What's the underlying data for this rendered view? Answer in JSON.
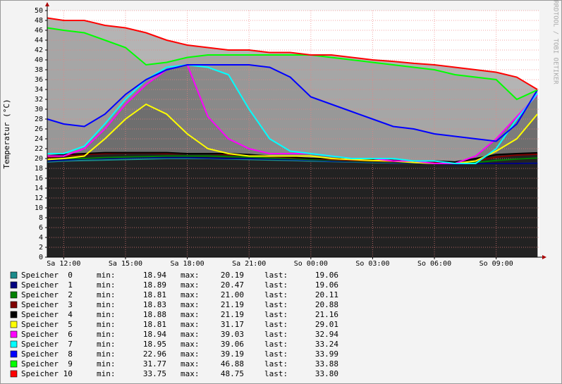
{
  "chart_data": {
    "type": "line",
    "ylabel": "Temperatur (°C)",
    "watermark": "RRDTOOL / TOBI OETIKER",
    "xlim": [
      11.2,
      35.1
    ],
    "xticks": [
      {
        "value": 12,
        "label": "Sa 12:00"
      },
      {
        "value": 15,
        "label": "Sa 15:00"
      },
      {
        "value": 18,
        "label": "Sa 18:00"
      },
      {
        "value": 21,
        "label": "Sa 21:00"
      },
      {
        "value": 24,
        "label": "So 00:00"
      },
      {
        "value": 27,
        "label": "So 03:00"
      },
      {
        "value": 30,
        "label": "So 06:00"
      },
      {
        "value": 33,
        "label": "So 09:00"
      }
    ],
    "ylim": [
      0,
      50
    ],
    "yticks": [
      0,
      2,
      4,
      6,
      8,
      10,
      12,
      14,
      16,
      18,
      20,
      22,
      24,
      26,
      28,
      30,
      32,
      34,
      36,
      38,
      40,
      42,
      44,
      46,
      48,
      50
    ],
    "grid": true,
    "stat_labels": [
      "min:",
      "max:",
      "last:"
    ],
    "x": [
      11.2,
      12,
      13,
      14,
      15,
      16,
      17,
      18,
      19,
      20,
      21,
      22,
      23,
      24,
      25,
      26,
      27,
      28,
      29,
      30,
      31,
      32,
      33,
      34,
      35
    ],
    "series": [
      {
        "name": "Speicher  0",
        "color": "#1a8a8a",
        "fill": "#222222",
        "min": "18.94",
        "max": "20.19",
        "last": "19.06",
        "values": [
          19.3,
          19.5,
          19.6,
          19.7,
          19.8,
          19.9,
          20,
          20,
          20,
          19.9,
          19.8,
          19.7,
          19.6,
          19.5,
          19.4,
          19.3,
          19.2,
          19.1,
          19.1,
          19,
          19,
          19,
          19,
          19,
          19.06
        ]
      },
      {
        "name": "Speicher  1",
        "color": "#000080",
        "fill": "#222222",
        "min": "18.89",
        "max": "20.47",
        "last": "19.06",
        "values": [
          19.5,
          19.7,
          19.9,
          20,
          20.1,
          20.2,
          20.2,
          20.2,
          20.1,
          20,
          20,
          19.9,
          19.8,
          19.7,
          19.5,
          19.4,
          19.3,
          19.2,
          19.1,
          19,
          18.9,
          19,
          19,
          19,
          19.06
        ]
      },
      {
        "name": "Speicher  2",
        "color": "#008000",
        "fill": "#222222",
        "min": "18.81",
        "max": "21.00",
        "last": "20.11",
        "values": [
          19.8,
          20,
          20,
          20.2,
          20.3,
          20.4,
          20.5,
          20.5,
          20.5,
          20.4,
          20.3,
          20.1,
          20,
          19.8,
          19.7,
          19.5,
          19.4,
          19.3,
          19.2,
          19.1,
          19,
          19.2,
          19.6,
          19.9,
          20.11
        ]
      },
      {
        "name": "Speicher  3",
        "color": "#800000",
        "fill": "#222222",
        "min": "18.83",
        "max": "21.19",
        "last": "20.88",
        "values": [
          20.2,
          20.5,
          20.8,
          21,
          21.1,
          21.1,
          21,
          21,
          21,
          20.8,
          20.6,
          20.4,
          20.2,
          20,
          19.8,
          19.6,
          19.5,
          19.4,
          19.3,
          19.2,
          19,
          19.5,
          20.3,
          20.7,
          20.88
        ]
      },
      {
        "name": "Speicher  4",
        "color": "#000000",
        "fill": "#222222",
        "min": "18.88",
        "max": "21.19",
        "last": "21.16",
        "values": [
          20.5,
          20.8,
          21,
          21.2,
          21.2,
          21.2,
          21.2,
          21,
          21,
          21,
          20.8,
          20.5,
          20.3,
          20,
          20,
          20,
          19.8,
          19.6,
          19.5,
          19.5,
          19.3,
          20,
          20.8,
          21,
          21.16
        ]
      },
      {
        "name": "Speicher  5",
        "color": "#ffff00",
        "fill": "#6e6e6e",
        "min": "18.81",
        "max": "31.17",
        "last": "29.01",
        "values": [
          19.8,
          20,
          20.5,
          24,
          28,
          31,
          29,
          25,
          22,
          21,
          20.5,
          20.5,
          20.5,
          20.5,
          20,
          19.8,
          19.6,
          19.5,
          19.2,
          19,
          19,
          19.5,
          21.5,
          24,
          29
        ]
      },
      {
        "name": "Speicher  6",
        "color": "#ff00ff",
        "fill": "#7c7c7c",
        "min": "18.94",
        "max": "39.03",
        "last": "32.94",
        "values": [
          20.5,
          20.5,
          22,
          26,
          31,
          35,
          38,
          39,
          28.5,
          24,
          22,
          21,
          21,
          21,
          20.5,
          20,
          20,
          19.5,
          19.5,
          19,
          19,
          20.5,
          24,
          28.5,
          32.9
        ]
      },
      {
        "name": "Speicher  7",
        "color": "#00ffff",
        "fill": "#8a8a8a",
        "min": "18.95",
        "max": "39.06",
        "last": "33.24",
        "values": [
          21,
          21,
          22.5,
          27,
          32,
          36,
          38.5,
          39,
          38.5,
          37,
          30,
          24,
          21.5,
          21,
          20.5,
          20,
          20,
          20,
          19.5,
          19.5,
          19,
          19,
          22,
          28,
          33.2
        ]
      },
      {
        "name": "Speicher  8",
        "color": "#0000ff",
        "fill": "#989898",
        "min": "22.96",
        "max": "39.19",
        "last": "33.99",
        "values": [
          28,
          27,
          26.5,
          29,
          33,
          36,
          38,
          39,
          39,
          39,
          39,
          38.5,
          36.5,
          32.5,
          31,
          29.5,
          28,
          26.5,
          26,
          25,
          24.5,
          24,
          23.5,
          27,
          33.9
        ]
      },
      {
        "name": "Speicher  9",
        "color": "#00ff00",
        "fill": "#a6a6a6",
        "min": "31.77",
        "max": "46.88",
        "last": "33.88",
        "values": [
          46.5,
          46,
          45.5,
          44,
          42.5,
          39,
          39.5,
          40.5,
          41,
          41,
          41,
          41,
          41,
          41,
          40.5,
          40,
          39.5,
          39,
          38.5,
          38,
          37,
          36.5,
          36,
          32,
          33.9
        ]
      },
      {
        "name": "Speicher 10",
        "color": "#ff0000",
        "fill": "#b4b4b4",
        "min": "33.75",
        "max": "48.75",
        "last": "33.80",
        "values": [
          48.5,
          48,
          48,
          47,
          46.5,
          45.5,
          44,
          43,
          42.5,
          42,
          42,
          41.5,
          41.5,
          41,
          41,
          40.5,
          40,
          39.7,
          39.3,
          39,
          38.5,
          38,
          37.5,
          36.5,
          34
        ]
      }
    ]
  }
}
